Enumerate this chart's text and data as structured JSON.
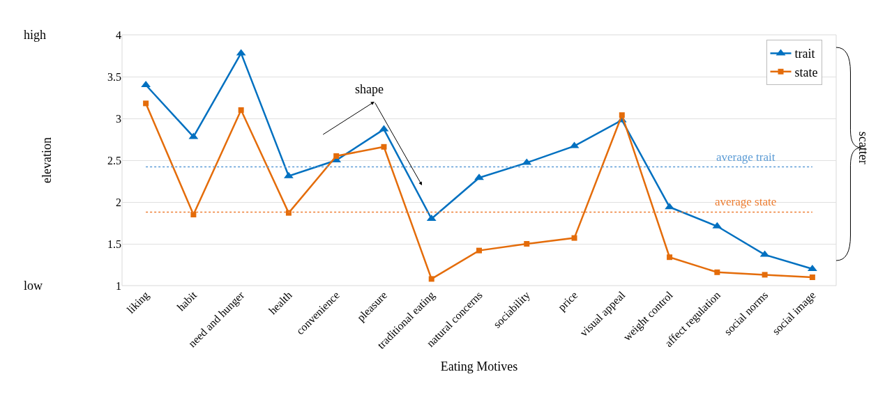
{
  "chart_data": {
    "type": "line",
    "xlabel": "Eating Motives",
    "ylabel": "elevation",
    "categories": [
      "liking",
      "habit",
      "need and hunger",
      "health",
      "convenience",
      "pleasure",
      "traditional eating",
      "natural concerns",
      "sociability",
      "price",
      "visual appeal",
      "weight control",
      "affect regulation",
      "social norms",
      "social image"
    ],
    "series": [
      {
        "name": "trait",
        "color": "#0070c0",
        "marker": "triangle",
        "values": [
          3.4,
          2.78,
          3.78,
          2.31,
          2.5,
          2.87,
          1.8,
          2.29,
          2.47,
          2.67,
          2.98,
          1.94,
          1.71,
          1.37,
          1.2
        ]
      },
      {
        "name": "state",
        "color": "#e46c0a",
        "marker": "square",
        "values": [
          3.18,
          1.85,
          3.1,
          1.87,
          2.55,
          2.66,
          1.08,
          1.42,
          1.5,
          1.57,
          3.04,
          1.34,
          1.16,
          1.13,
          1.1
        ]
      }
    ],
    "ylim": [
      1,
      4
    ],
    "yticks": [
      1,
      1.5,
      2,
      2.5,
      3,
      3.5,
      4
    ],
    "grid": "y",
    "legend": "top right",
    "line_style": "solid",
    "ref_lines": [
      {
        "axis": "y",
        "value": 2.42,
        "label": "average trait",
        "color": "#5b9bd5",
        "line_style": "dotted"
      },
      {
        "axis": "y",
        "value": 1.88,
        "label": "average state",
        "color": "#ed7d31",
        "line_style": "dotted"
      }
    ],
    "annotations": [
      "high",
      "low",
      "shape",
      "scatter"
    ]
  }
}
